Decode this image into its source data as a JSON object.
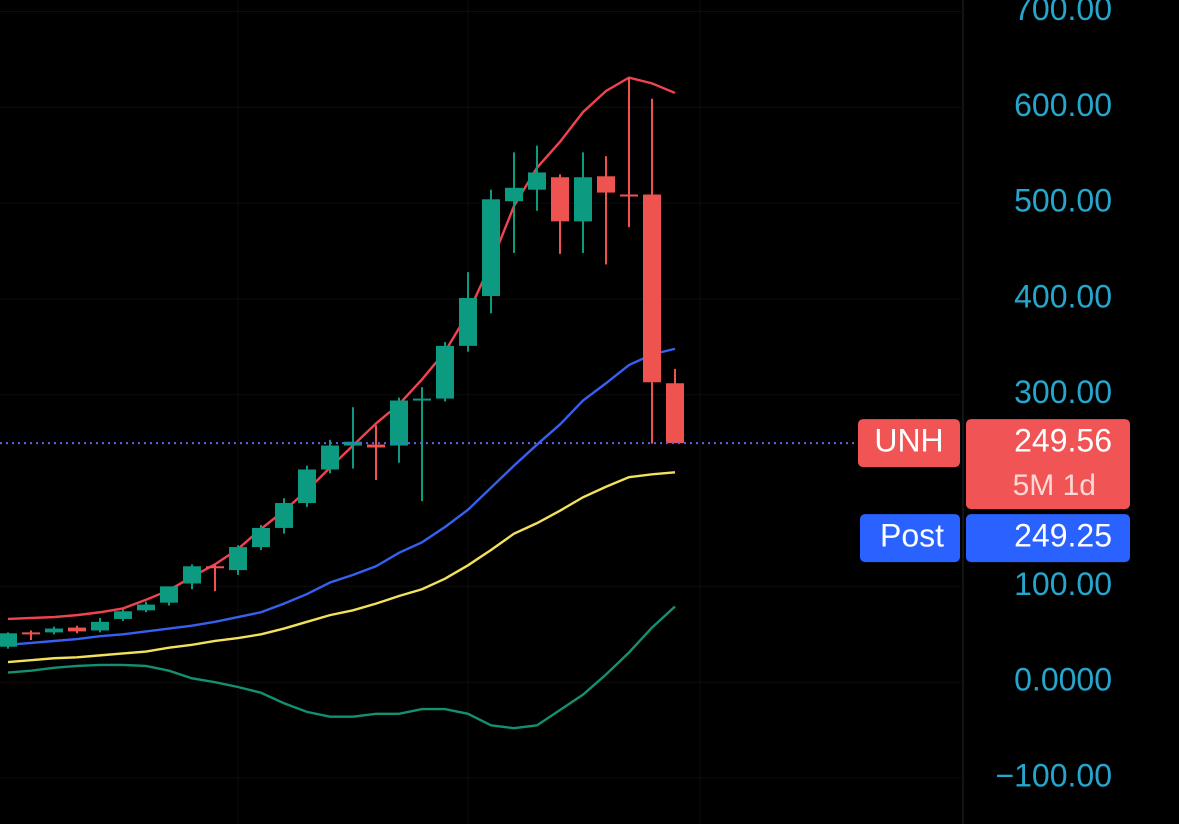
{
  "chart_data": {
    "type": "candlestick",
    "categories": [
      null,
      null,
      null,
      null,
      null,
      null,
      null,
      null,
      null,
      null,
      null,
      null,
      null,
      null,
      null,
      null,
      null,
      null,
      null,
      null,
      null,
      null,
      null,
      null,
      null,
      null,
      null,
      null,
      null,
      null
    ],
    "open": [
      37,
      52,
      52,
      57,
      54,
      66,
      75,
      83,
      103,
      121,
      117,
      141,
      161,
      187,
      222,
      247,
      248,
      247,
      294,
      296,
      351,
      403,
      502,
      514,
      527,
      481,
      528,
      509,
      509,
      312
    ],
    "high": [
      52,
      54,
      58,
      59,
      67,
      76,
      84,
      97,
      123,
      123,
      143,
      164,
      192,
      226,
      253,
      287,
      268,
      297,
      308,
      355,
      428,
      514,
      553,
      560,
      530,
      553,
      549,
      630,
      609,
      327
    ],
    "low": [
      35,
      44,
      50,
      51,
      52,
      64,
      73,
      80,
      97,
      95,
      112,
      138,
      155,
      183,
      218,
      223,
      211,
      229,
      189,
      293,
      345,
      385,
      448,
      492,
      447,
      448,
      436,
      475,
      249,
      249.56
    ],
    "close": [
      51,
      50,
      56,
      53,
      63,
      74,
      81,
      100,
      121,
      119,
      141,
      161,
      187,
      222,
      247,
      251,
      245,
      294,
      296,
      351,
      401,
      504,
      516,
      532,
      481,
      527,
      511,
      507,
      313,
      249.56
    ],
    "up_color": "#0c9a80",
    "down_color": "#ef5350",
    "overlays": [
      {
        "color": "#ef4350",
        "values": [
          66,
          67,
          68,
          70,
          73,
          77,
          86,
          96,
          110,
          123,
          139,
          160,
          179,
          200,
          224,
          247,
          270,
          290,
          316,
          345,
          385,
          437,
          497,
          537,
          564,
          595,
          617,
          631,
          625,
          615
        ]
      },
      {
        "color": "#3560f0",
        "values": [
          39,
          41,
          43,
          45,
          48,
          50,
          53,
          56,
          59,
          63,
          68,
          73,
          82,
          92,
          104,
          112,
          121,
          135,
          146,
          162,
          180,
          203,
          226,
          248,
          269,
          294,
          312,
          331,
          342,
          348
        ]
      },
      {
        "color": "#f2e15a",
        "values": [
          21,
          23,
          25,
          26,
          28,
          30,
          32,
          36,
          39,
          43,
          46,
          50,
          56,
          63,
          70,
          75,
          82,
          90,
          97,
          108,
          122,
          138,
          155,
          166,
          179,
          193,
          204,
          214,
          217,
          219
        ]
      },
      {
        "color": "#13906f",
        "values": [
          10,
          12,
          15,
          17,
          18,
          18,
          17,
          12,
          4,
          0,
          -5,
          -11,
          -22,
          -31,
          -36,
          -36,
          -33,
          -33,
          -28,
          -28,
          -33,
          -45,
          -48,
          -45,
          -29,
          -13,
          8,
          31,
          57,
          79
        ]
      }
    ],
    "ylim": [
      -148,
      712
    ],
    "yticks": [
      {
        "value": 700,
        "label": "700.00"
      },
      {
        "value": 600,
        "label": "600.00"
      },
      {
        "value": 500,
        "label": "500.00"
      },
      {
        "value": 400,
        "label": "400.00"
      },
      {
        "value": 300,
        "label": "300.00"
      },
      {
        "value": 100,
        "label": "100.00"
      },
      {
        "value": 0,
        "label": "0.0000"
      },
      {
        "value": -100,
        "label": "−100.00"
      }
    ],
    "grid": true,
    "last_price": {
      "symbol": "UNH",
      "value": 249.56,
      "interval": "5M 1d",
      "color": "#f05454"
    },
    "post_price": {
      "label": "Post",
      "value": 249.25,
      "color": "#2962ff"
    }
  }
}
